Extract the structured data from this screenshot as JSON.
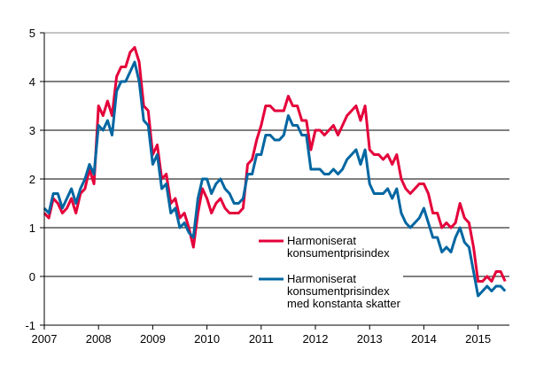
{
  "chart_data": {
    "type": "line",
    "x_start": "2007-01",
    "frequency": "monthly",
    "xticks": [
      "2007",
      "2008",
      "2009",
      "2010",
      "2011",
      "2012",
      "2013",
      "2014",
      "2015"
    ],
    "yticks": [
      "-1",
      "0",
      "1",
      "2",
      "3",
      "4",
      "5"
    ],
    "ylim": [
      -1,
      5
    ],
    "grid": "horizontal",
    "legend_placement": "inside-lower-center",
    "series": [
      {
        "name": "Harmoniserat konsumentprisindex",
        "name_lines": [
          "Harmoniserat",
          "konsumentprisindex"
        ],
        "color": "#e4003a",
        "values": [
          1.3,
          1.2,
          1.6,
          1.5,
          1.3,
          1.4,
          1.6,
          1.3,
          1.7,
          1.8,
          2.2,
          1.9,
          3.5,
          3.3,
          3.6,
          3.3,
          4.1,
          4.3,
          4.3,
          4.6,
          4.7,
          4.4,
          3.5,
          3.4,
          2.5,
          2.7,
          2.0,
          2.1,
          1.5,
          1.6,
          1.2,
          1.3,
          1.0,
          0.6,
          1.3,
          1.8,
          1.6,
          1.3,
          1.5,
          1.6,
          1.4,
          1.3,
          1.3,
          1.3,
          1.4,
          2.3,
          2.4,
          2.8,
          3.1,
          3.5,
          3.5,
          3.4,
          3.4,
          3.4,
          3.7,
          3.5,
          3.5,
          3.2,
          3.2,
          2.6,
          3.0,
          3.0,
          2.9,
          3.0,
          3.1,
          2.9,
          3.1,
          3.3,
          3.4,
          3.5,
          3.2,
          3.5,
          2.6,
          2.5,
          2.5,
          2.4,
          2.5,
          2.3,
          2.5,
          2.0,
          1.8,
          1.7,
          1.8,
          1.9,
          1.9,
          1.7,
          1.3,
          1.3,
          1.0,
          1.1,
          1.0,
          1.1,
          1.5,
          1.2,
          1.1,
          0.6,
          -0.1,
          -0.1,
          0.0,
          -0.1,
          0.1,
          0.1,
          -0.1
        ]
      },
      {
        "name": "Harmoniserat konsumentprisindex med konstanta skatter",
        "name_lines": [
          "Harmoniserat",
          "konsumentprisindex",
          "med konstanta skatter"
        ],
        "color": "#0066a1",
        "values": [
          1.4,
          1.3,
          1.7,
          1.7,
          1.4,
          1.6,
          1.8,
          1.5,
          1.8,
          2.0,
          2.3,
          2.1,
          3.1,
          3.0,
          3.2,
          2.9,
          3.8,
          4.0,
          4.0,
          4.2,
          4.4,
          4.0,
          3.2,
          3.1,
          2.3,
          2.5,
          1.8,
          1.9,
          1.3,
          1.4,
          1.0,
          1.1,
          0.9,
          0.8,
          1.6,
          2.0,
          2.0,
          1.7,
          1.9,
          2.0,
          1.8,
          1.7,
          1.5,
          1.5,
          1.6,
          2.1,
          2.1,
          2.5,
          2.5,
          2.9,
          2.9,
          2.8,
          2.8,
          2.9,
          3.3,
          3.1,
          3.1,
          2.9,
          2.9,
          2.2,
          2.2,
          2.2,
          2.1,
          2.1,
          2.2,
          2.1,
          2.2,
          2.4,
          2.5,
          2.6,
          2.3,
          2.6,
          1.9,
          1.7,
          1.7,
          1.7,
          1.8,
          1.6,
          1.8,
          1.3,
          1.1,
          1.0,
          1.1,
          1.2,
          1.4,
          1.1,
          0.8,
          0.8,
          0.5,
          0.6,
          0.5,
          0.8,
          1.0,
          0.7,
          0.6,
          0.1,
          -0.4,
          -0.3,
          -0.2,
          -0.3,
          -0.2,
          -0.2,
          -0.3
        ]
      }
    ]
  }
}
